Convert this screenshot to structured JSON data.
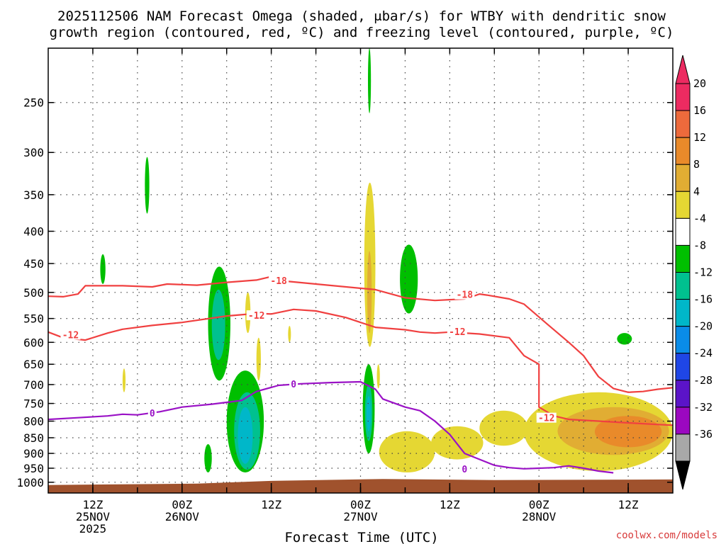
{
  "chart_data": {
    "type": "time-height cross section",
    "title_line1": "2025112506 NAM Forecast Omega (shaded, μbar/s) for WTBY with dendritic snow",
    "title_line2": "growth region (contoured, red, ºC) and freezing level (contoured, purple, ºC)",
    "xlabel": "Forecast Time (UTC)",
    "credit": "coolwx.com/models",
    "x_unit": "hours since 2025-11-25 06Z",
    "xlim": [
      0,
      84
    ],
    "y_unit": "hPa",
    "ylim": [
      1040,
      205
    ],
    "y_scale": "log",
    "y_ticks": [
      250,
      300,
      350,
      400,
      450,
      500,
      550,
      600,
      650,
      700,
      750,
      800,
      850,
      900,
      950,
      1000
    ],
    "grid": true,
    "x_ticks": [
      {
        "hour": 6,
        "lines": [
          "12Z",
          "25NOV",
          "2025"
        ]
      },
      {
        "hour": 18,
        "lines": [
          "00Z",
          "26NOV"
        ]
      },
      {
        "hour": 30,
        "lines": [
          "12Z"
        ]
      },
      {
        "hour": 42,
        "lines": [
          "00Z",
          "27NOV"
        ]
      },
      {
        "hour": 54,
        "lines": [
          "12Z"
        ]
      },
      {
        "hour": 66,
        "lines": [
          "00Z",
          "28NOV"
        ]
      },
      {
        "hour": 78,
        "lines": [
          "12Z"
        ]
      }
    ],
    "colorbar": {
      "labels": [
        "20",
        "16",
        "12",
        "8",
        "4",
        "-4",
        "-8",
        "-12",
        "-16",
        "-20",
        "-24",
        "-28",
        "-32",
        "-36"
      ],
      "colors": [
        "#ec2b61",
        "#ed6a3c",
        "#e98a2a",
        "#e1ad33",
        "#e5d733",
        "#ffffff",
        "#00bf00",
        "#00c18f",
        "#00b7c9",
        "#0a8ce8",
        "#1f46e6",
        "#5b14c8",
        "#9b08c0",
        "#a8a8a8",
        "#000000"
      ],
      "top_triangle_color": "#ec2b61",
      "bottom_triangle_color": "#000000"
    },
    "contours": [
      {
        "label": "-18",
        "color": "#f04040",
        "points": [
          [
            0,
            507
          ],
          [
            2,
            508
          ],
          [
            4,
            503
          ],
          [
            5,
            488
          ],
          [
            10,
            488
          ],
          [
            14,
            490
          ],
          [
            16,
            485
          ],
          [
            20,
            487
          ],
          [
            24,
            482
          ],
          [
            28,
            478
          ],
          [
            30,
            472
          ],
          [
            32,
            480
          ],
          [
            36,
            485
          ],
          [
            44,
            495
          ],
          [
            48,
            510
          ],
          [
            52,
            515
          ],
          [
            56,
            512
          ],
          [
            57,
            508
          ],
          [
            58,
            503
          ],
          [
            59,
            505
          ],
          [
            62,
            512
          ],
          [
            64,
            522
          ],
          [
            67,
            560
          ],
          [
            70,
            600
          ],
          [
            72,
            630
          ],
          [
            74,
            680
          ],
          [
            76,
            710
          ],
          [
            78,
            720
          ],
          [
            80,
            718
          ],
          [
            82,
            712
          ],
          [
            84,
            708
          ]
        ],
        "label_at": [
          [
            31,
            480
          ],
          [
            56,
            505
          ]
        ]
      },
      {
        "label": "-12",
        "color": "#f04040",
        "points": [
          [
            0,
            578
          ],
          [
            2,
            590
          ],
          [
            5,
            595
          ],
          [
            8,
            580
          ],
          [
            10,
            572
          ],
          [
            14,
            564
          ],
          [
            18,
            558
          ],
          [
            24,
            545
          ],
          [
            28,
            540
          ],
          [
            30,
            541
          ],
          [
            33,
            532
          ],
          [
            36,
            535
          ],
          [
            40,
            548
          ],
          [
            44,
            568
          ],
          [
            48,
            573
          ],
          [
            50,
            578
          ],
          [
            52,
            580
          ],
          [
            54,
            578
          ],
          [
            58,
            582
          ],
          [
            62,
            590
          ],
          [
            64,
            630
          ],
          [
            66,
            650
          ],
          [
            66,
            760
          ],
          [
            68,
            785
          ],
          [
            70,
            795
          ],
          [
            74,
            800
          ],
          [
            78,
            805
          ],
          [
            82,
            810
          ],
          [
            84,
            812
          ]
        ],
        "label_at": [
          [
            3,
            585
          ],
          [
            28,
            545
          ],
          [
            55,
            578
          ],
          [
            67,
            792
          ]
        ]
      },
      {
        "label": "0",
        "color": "#9a12c6",
        "points": [
          [
            0,
            795
          ],
          [
            4,
            790
          ],
          [
            8,
            785
          ],
          [
            10,
            780
          ],
          [
            12,
            782
          ],
          [
            15,
            773
          ],
          [
            18,
            760
          ],
          [
            22,
            752
          ],
          [
            26,
            742
          ],
          [
            28,
            718
          ],
          [
            31,
            702
          ],
          [
            34,
            698
          ],
          [
            38,
            695
          ],
          [
            42,
            693
          ],
          [
            44,
            712
          ],
          [
            45,
            738
          ],
          [
            48,
            760
          ],
          [
            50,
            770
          ],
          [
            52,
            800
          ],
          [
            54,
            840
          ],
          [
            56,
            900
          ],
          [
            60,
            940
          ],
          [
            62,
            948
          ],
          [
            64,
            952
          ],
          [
            66,
            950
          ],
          [
            68,
            948
          ],
          [
            70,
            942
          ],
          [
            72,
            950
          ],
          [
            74,
            960
          ],
          [
            76,
            966
          ]
        ],
        "label_at": [
          [
            33,
            700
          ],
          [
            14,
            778
          ],
          [
            56,
            955
          ]
        ]
      }
    ],
    "shaded_regions": [
      {
        "omega": -8,
        "color": "#00bf00",
        "hour": [
          21.5,
          24.5
        ],
        "hPa": [
          455,
          690
        ]
      },
      {
        "omega": -12,
        "color": "#00c18f",
        "hour": [
          22.0,
          23.8
        ],
        "hPa": [
          495,
          640
        ]
      },
      {
        "omega": -8,
        "color": "#00bf00",
        "hour": [
          24.0,
          29.0
        ],
        "hPa": [
          665,
          965
        ]
      },
      {
        "omega": -12,
        "color": "#00c18f",
        "hour": [
          25.0,
          28.5
        ],
        "hPa": [
          720,
          955
        ]
      },
      {
        "omega": -16,
        "color": "#00b7c9",
        "hour": [
          25.5,
          27.5
        ],
        "hPa": [
          760,
          935
        ]
      },
      {
        "omega": -8,
        "color": "#00bf00",
        "hour": [
          21.0,
          22.0
        ],
        "hPa": [
          870,
          965
        ]
      },
      {
        "omega": -8,
        "color": "#00bf00",
        "hour": [
          42.3,
          43.9
        ],
        "hPa": [
          650,
          900
        ]
      },
      {
        "omega": -12,
        "color": "#00c18f",
        "hour": [
          42.6,
          43.6
        ],
        "hPa": [
          700,
          860
        ]
      },
      {
        "omega": -16,
        "color": "#00b7c9",
        "hour": [
          42.8,
          43.4
        ],
        "hPa": [
          730,
          830
        ]
      },
      {
        "omega": -8,
        "color": "#00bf00",
        "hour": [
          47.3,
          49.7
        ],
        "hPa": [
          420,
          540
        ]
      },
      {
        "omega": -8,
        "color": "#00bf00",
        "hour": [
          43.0,
          43.4
        ],
        "hPa": [
          205,
          260
        ]
      },
      {
        "omega": -8,
        "color": "#00bf00",
        "hour": [
          13.0,
          13.6
        ],
        "hPa": [
          305,
          375
        ]
      },
      {
        "omega": -8,
        "color": "#00bf00",
        "hour": [
          7.0,
          7.7
        ],
        "hPa": [
          435,
          485
        ]
      },
      {
        "omega": -8,
        "color": "#00bf00",
        "hour": [
          76.5,
          78.5
        ],
        "hPa": [
          580,
          605
        ]
      },
      {
        "omega": 4,
        "color": "#e5d733",
        "hour": [
          42.5,
          44.0
        ],
        "hPa": [
          335,
          610
        ]
      },
      {
        "omega": 8,
        "color": "#e1ad33",
        "hour": [
          42.9,
          43.5
        ],
        "hPa": [
          430,
          580
        ]
      },
      {
        "omega": 4,
        "color": "#e5d733",
        "hour": [
          26.5,
          27.2
        ],
        "hPa": [
          500,
          580
        ]
      },
      {
        "omega": 4,
        "color": "#e5d733",
        "hour": [
          28.0,
          28.6
        ],
        "hPa": [
          590,
          690
        ]
      },
      {
        "omega": 4,
        "color": "#e5d733",
        "hour": [
          10.0,
          10.4
        ],
        "hPa": [
          660,
          720
        ]
      },
      {
        "omega": 4,
        "color": "#e5d733",
        "hour": [
          32.3,
          32.6
        ],
        "hPa": [
          565,
          600
        ]
      },
      {
        "omega": 4,
        "color": "#e5d733",
        "hour": [
          44.2,
          44.6
        ],
        "hPa": [
          650,
          710
        ]
      },
      {
        "omega": 4,
        "color": "#e5d733",
        "hour": [
          44.5,
          52.0
        ],
        "hPa": [
          830,
          965
        ]
      },
      {
        "omega": 4,
        "color": "#e5d733",
        "hour": [
          51.5,
          58.5
        ],
        "hPa": [
          815,
          920
        ]
      },
      {
        "omega": 4,
        "color": "#e5d733",
        "hour": [
          58.0,
          64.5
        ],
        "hPa": [
          770,
          875
        ]
      },
      {
        "omega": 4,
        "color": "#e5d733",
        "hour": [
          64.0,
          84.0
        ],
        "hPa": [
          720,
          960
        ]
      },
      {
        "omega": 8,
        "color": "#e1ad33",
        "hour": [
          68.5,
          83.5
        ],
        "hPa": [
          760,
          905
        ]
      },
      {
        "omega": 12,
        "color": "#e98a2a",
        "hour": [
          73.5,
          82.5
        ],
        "hPa": [
          785,
          880
        ]
      }
    ],
    "terrain": {
      "color": "#a0522d",
      "top_hPa": [
        [
          0,
          1010
        ],
        [
          20,
          1005
        ],
        [
          30,
          995
        ],
        [
          45,
          988
        ],
        [
          60,
          992
        ],
        [
          84,
          990
        ]
      ]
    }
  }
}
